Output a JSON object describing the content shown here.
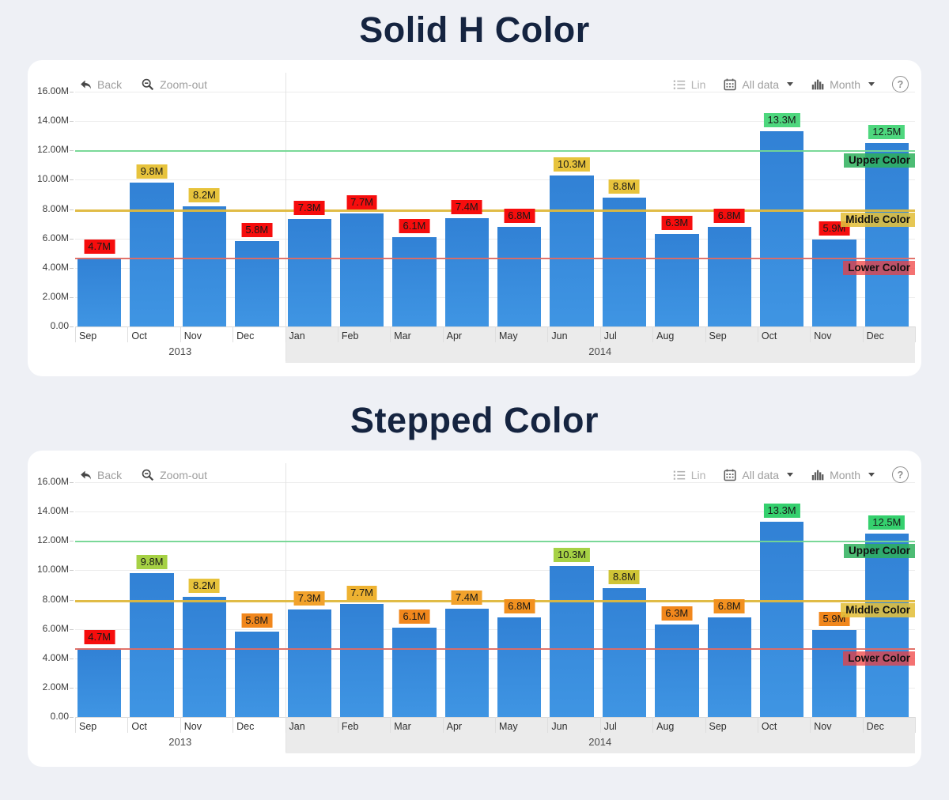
{
  "chart_data": [
    {
      "type": "bar",
      "title": "Solid H Color",
      "categories": [
        "Sep",
        "Oct",
        "Nov",
        "Dec",
        "Jan",
        "Feb",
        "Mar",
        "Apr",
        "May",
        "Jun",
        "Jul",
        "Aug",
        "Sep",
        "Oct",
        "Nov",
        "Dec"
      ],
      "values": [
        4.7,
        9.8,
        8.2,
        5.8,
        7.3,
        7.7,
        6.1,
        7.4,
        6.8,
        10.3,
        8.8,
        6.3,
        6.8,
        13.3,
        5.9,
        12.5
      ],
      "value_labels": [
        "4.7M",
        "9.8M",
        "8.2M",
        "5.8M",
        "7.3M",
        "7.7M",
        "6.1M",
        "7.4M",
        "6.8M",
        "10.3M",
        "8.8M",
        "6.3M",
        "6.8M",
        "13.3M",
        "5.9M",
        "12.5M"
      ],
      "label_colors": [
        "#f60d0d",
        "#e7c33c",
        "#e7c33c",
        "#f60d0d",
        "#f60d0d",
        "#f60d0d",
        "#f60d0d",
        "#f60d0d",
        "#f60d0d",
        "#e7c33c",
        "#e7c33c",
        "#f60d0d",
        "#f60d0d",
        "#4ed77e",
        "#f60d0d",
        "#4ed77e"
      ],
      "bar_color": "#3687d9",
      "unit": "M",
      "ylim": [
        0,
        16
      ],
      "y_tick_labels": [
        "0.00",
        "2.00M",
        "4.00M",
        "6.00M",
        "8.00M",
        "10.00M",
        "12.00M",
        "14.00M",
        "16.00M"
      ],
      "year_bands": [
        {
          "label": "2013",
          "from": 0,
          "to": 4,
          "shaded": false
        },
        {
          "label": "2014",
          "from": 4,
          "to": 16,
          "shaded": true
        }
      ],
      "hlines": [
        {
          "label": "Upper Color",
          "value": 12,
          "line_color": "#74d793",
          "label_bg": "rgba(46,176,92,0.85)",
          "thick": 2
        },
        {
          "label": "Middle Color",
          "value": 8,
          "line_color": "#dfb83c",
          "label_bg": "rgba(226,191,60,0.88)",
          "thick": 3
        },
        {
          "label": "Lower Color",
          "value": 4.7,
          "line_color": "#e06b63",
          "label_bg": "rgba(240,59,59,0.72)",
          "thick": 2
        }
      ],
      "toolbar": {
        "back": "Back",
        "zoom_out": "Zoom-out",
        "lin": "Lin",
        "all_data": "All data",
        "month": "Month",
        "help": "?"
      }
    },
    {
      "type": "bar",
      "title": "Stepped Color",
      "categories": [
        "Sep",
        "Oct",
        "Nov",
        "Dec",
        "Jan",
        "Feb",
        "Mar",
        "Apr",
        "May",
        "Jun",
        "Jul",
        "Aug",
        "Sep",
        "Oct",
        "Nov",
        "Dec"
      ],
      "values": [
        4.7,
        9.8,
        8.2,
        5.8,
        7.3,
        7.7,
        6.1,
        7.4,
        6.8,
        10.3,
        8.8,
        6.3,
        6.8,
        13.3,
        5.9,
        12.5
      ],
      "value_labels": [
        "4.7M",
        "9.8M",
        "8.2M",
        "5.8M",
        "7.3M",
        "7.7M",
        "6.1M",
        "7.4M",
        "6.8M",
        "10.3M",
        "8.8M",
        "6.3M",
        "6.8M",
        "13.3M",
        "5.9M",
        "12.5M"
      ],
      "label_colors": [
        "#f60d0d",
        "#a6d144",
        "#e7c33c",
        "#f1871c",
        "#f2a22c",
        "#eeb231",
        "#f1871c",
        "#f2a22c",
        "#f2911f",
        "#a6d144",
        "#cfc436",
        "#f1871c",
        "#f2911f",
        "#35d06e",
        "#f1871c",
        "#35d06e"
      ],
      "bar_color": "#3687d9",
      "unit": "M",
      "ylim": [
        0,
        16
      ],
      "y_tick_labels": [
        "0.00",
        "2.00M",
        "4.00M",
        "6.00M",
        "8.00M",
        "10.00M",
        "12.00M",
        "14.00M",
        "16.00M"
      ],
      "year_bands": [
        {
          "label": "2013",
          "from": 0,
          "to": 4,
          "shaded": false
        },
        {
          "label": "2014",
          "from": 4,
          "to": 16,
          "shaded": true
        }
      ],
      "hlines": [
        {
          "label": "Upper Color",
          "value": 12,
          "line_color": "#74d793",
          "label_bg": "rgba(46,176,92,0.85)",
          "thick": 2
        },
        {
          "label": "Middle Color",
          "value": 8,
          "line_color": "#dfb83c",
          "label_bg": "rgba(226,191,60,0.88)",
          "thick": 3
        },
        {
          "label": "Lower Color",
          "value": 4.7,
          "line_color": "#e06b63",
          "label_bg": "rgba(240,59,59,0.72)",
          "thick": 2
        }
      ],
      "toolbar": {
        "back": "Back",
        "zoom_out": "Zoom-out",
        "lin": "Lin",
        "all_data": "All data",
        "month": "Month",
        "help": "?"
      }
    }
  ]
}
